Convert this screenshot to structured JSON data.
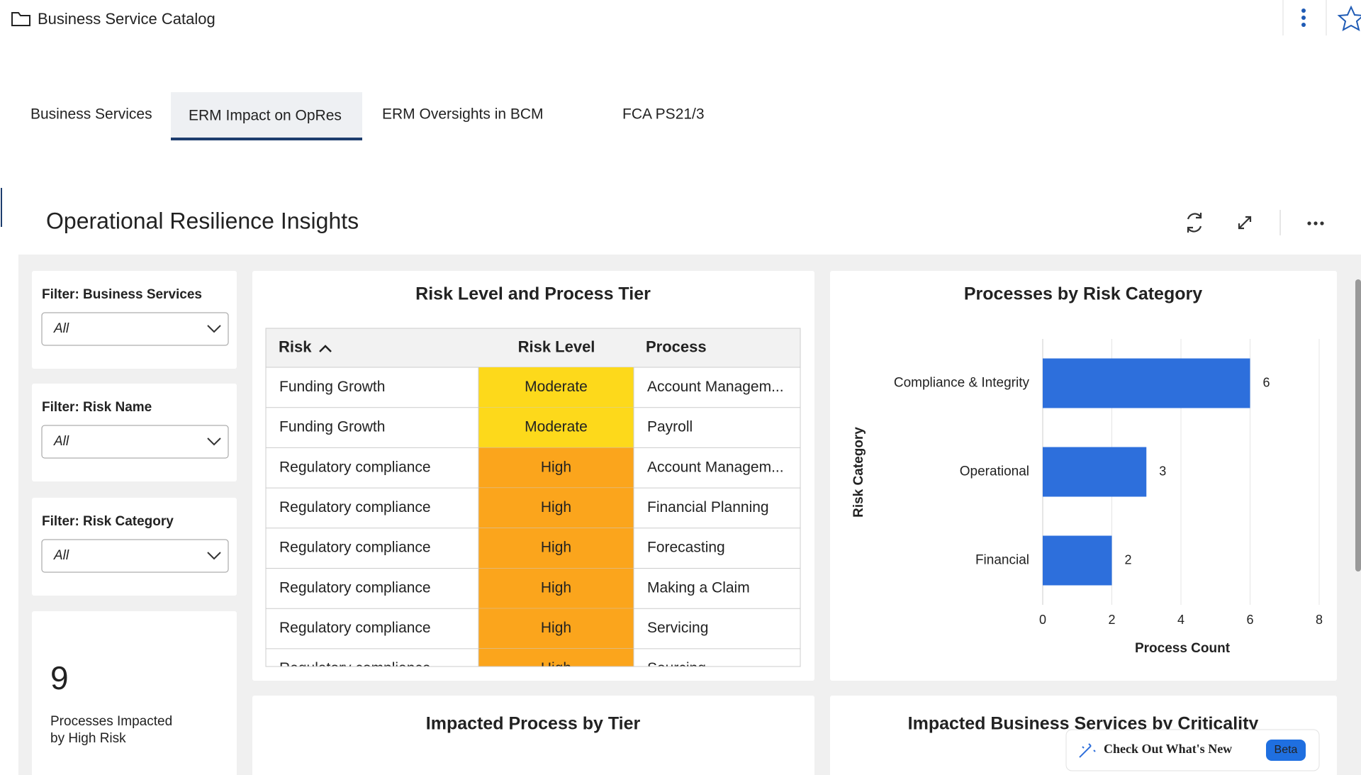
{
  "header": {
    "title": "Business Service Catalog"
  },
  "tabs": {
    "items": [
      "Business Services",
      "ERM Impact on OpRes",
      "ERM Oversights in BCM",
      "FCA PS21/3"
    ],
    "active": 1
  },
  "dashboard": {
    "title": "Operational Resilience Insights"
  },
  "filters": [
    {
      "label": "Filter: Business Services",
      "value": "All"
    },
    {
      "label": "Filter: Risk Name",
      "value": "All"
    },
    {
      "label": "Filter: Risk Category",
      "value": "All"
    }
  ],
  "kpi": {
    "value": 9,
    "label_lines": [
      "Processes Impacted",
      "by High Risk"
    ]
  },
  "table": {
    "title": "Risk Level and Process Tier",
    "columns": [
      "Risk",
      "Risk Level",
      "Process"
    ],
    "level_colors": {
      "Moderate": "#fdd91b",
      "High": "#fba51c"
    },
    "rows": [
      [
        "Funding Growth",
        "Moderate",
        "Account Managem..."
      ],
      [
        "Funding Growth",
        "Moderate",
        "Payroll"
      ],
      [
        "Regulatory compliance",
        "High",
        "Account Managem..."
      ],
      [
        "Regulatory compliance",
        "High",
        "Financial Planning"
      ],
      [
        "Regulatory compliance",
        "High",
        "Forecasting"
      ],
      [
        "Regulatory compliance",
        "High",
        "Making a Claim"
      ],
      [
        "Regulatory compliance",
        "High",
        "Servicing"
      ],
      [
        "Regulatory compliance",
        "High",
        "Sourcing"
      ]
    ]
  },
  "chart_data": {
    "type": "bar",
    "orientation": "horizontal",
    "title": "Processes by Risk Category",
    "categories": [
      "Compliance & Integrity",
      "Operational",
      "Financial"
    ],
    "values": [
      6,
      3,
      2
    ],
    "color": "#2d6fdc",
    "xlabel": "Process Count",
    "ylabel": "Risk Category",
    "xlim": [
      0,
      8
    ],
    "xticks": [
      0,
      2,
      4,
      6,
      8
    ],
    "grid": true
  },
  "panels": [
    "Impacted Process by Tier",
    "Impacted Business Services by Criticality"
  ],
  "banner": {
    "text": "Check Out What's New",
    "badge": "Beta"
  }
}
